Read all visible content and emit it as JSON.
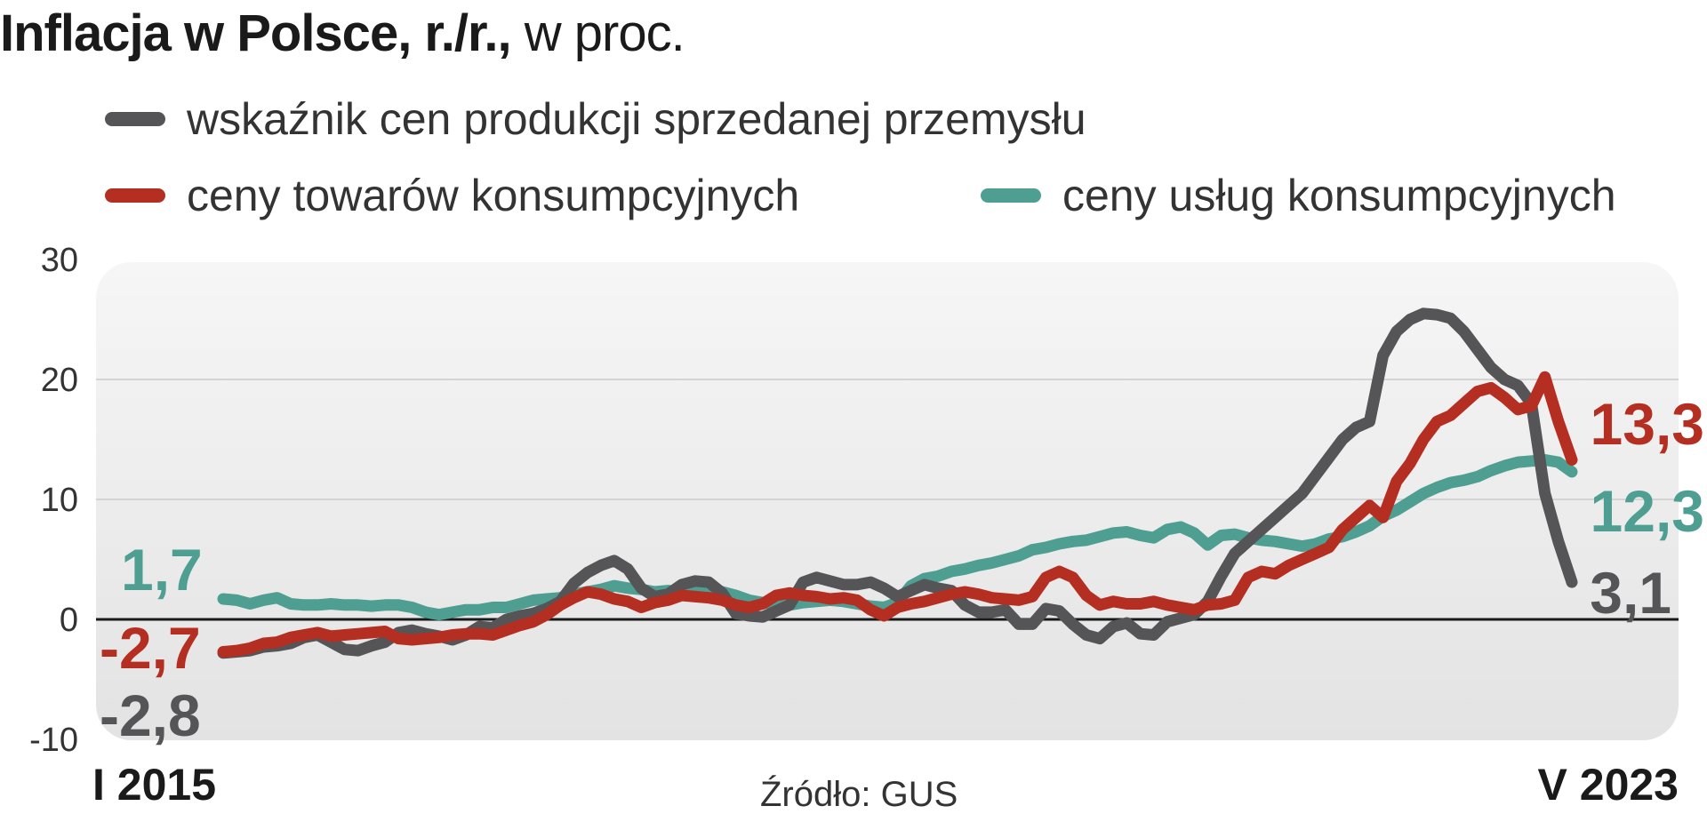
{
  "title": {
    "bold": "Inflacja w Polsce, r./r.,",
    "light": "w proc."
  },
  "source": "Źródło: GUS",
  "chart_data": {
    "type": "line",
    "ylim": [
      -10,
      30
    ],
    "yticks": [
      "30",
      "20",
      "10",
      "0",
      "-10"
    ],
    "x_start_label": "I 2015",
    "x_end_label": "V 2023",
    "series": [
      {
        "name": "wskaźnik cen produkcji sprzedanej przemysłu",
        "color": "#555558",
        "start_label": "-2,8",
        "end_label": "3,1",
        "values": [
          -2.8,
          -2.7,
          -2.6,
          -2.3,
          -2.2,
          -2.0,
          -1.5,
          -1.3,
          -1.9,
          -2.5,
          -2.6,
          -2.2,
          -1.9,
          -1.1,
          -0.9,
          -1.2,
          -1.4,
          -1.7,
          -1.3,
          -0.6,
          -0.7,
          0.0,
          0.3,
          0.5,
          0.9,
          1.5,
          3.0,
          3.9,
          4.5,
          4.9,
          4.2,
          2.6,
          1.9,
          2.1,
          2.9,
          3.2,
          3.1,
          2.2,
          0.5,
          0.3,
          0.2,
          0.7,
          1.2,
          3.1,
          3.5,
          3.2,
          2.9,
          2.9,
          3.1,
          2.6,
          1.9,
          2.4,
          2.9,
          2.6,
          2.4,
          1.2,
          0.6,
          0.6,
          0.8,
          -0.4,
          -0.4,
          0.9,
          0.7,
          -0.4,
          -1.3,
          -1.6,
          -0.6,
          -0.3,
          -1.2,
          -1.3,
          -0.2,
          0.1,
          0.4,
          1.5,
          3.6,
          5.5,
          6.5,
          7.5,
          8.5,
          9.5,
          10.5,
          12.0,
          13.5,
          15.0,
          16.0,
          16.5,
          22.0,
          24.0,
          25.0,
          25.5,
          25.4,
          25.1,
          24.0,
          22.5,
          21.0,
          20.0,
          19.5,
          18.0,
          10.5,
          6.5,
          3.1
        ]
      },
      {
        "name": "ceny towarów konsumpcyjnych",
        "color": "#b52e22",
        "start_label": "-2,7",
        "end_label": "13,3",
        "values": [
          -2.7,
          -2.6,
          -2.4,
          -2.0,
          -1.9,
          -1.5,
          -1.3,
          -1.1,
          -1.4,
          -1.3,
          -1.2,
          -1.1,
          -1.0,
          -1.6,
          -1.7,
          -1.6,
          -1.5,
          -1.3,
          -1.2,
          -1.2,
          -1.3,
          -0.9,
          -0.5,
          -0.2,
          0.4,
          1.2,
          1.8,
          2.3,
          2.1,
          1.7,
          1.5,
          1.0,
          1.4,
          1.6,
          2.0,
          1.9,
          1.8,
          1.6,
          1.2,
          1.0,
          1.3,
          2.0,
          2.2,
          2.0,
          1.9,
          1.7,
          1.8,
          1.6,
          0.8,
          0.3,
          1.0,
          1.3,
          1.5,
          1.8,
          2.1,
          2.3,
          2.1,
          1.8,
          1.7,
          1.6,
          1.9,
          3.5,
          4.0,
          3.5,
          2.0,
          1.2,
          1.5,
          1.3,
          1.3,
          1.5,
          1.2,
          1.0,
          0.8,
          1.2,
          1.3,
          1.6,
          3.5,
          4.0,
          3.8,
          4.5,
          5.0,
          5.5,
          6.0,
          7.5,
          8.5,
          9.5,
          8.5,
          11.5,
          13.0,
          15.0,
          16.5,
          17.0,
          18.0,
          19.0,
          19.3,
          18.5,
          17.5,
          17.8,
          20.2,
          16.5,
          13.3
        ]
      },
      {
        "name": "ceny usług konsumpcyjnych",
        "color": "#4e9e92",
        "start_label": "1,7",
        "end_label": "12,3",
        "values": [
          1.7,
          1.6,
          1.3,
          1.6,
          1.8,
          1.3,
          1.2,
          1.2,
          1.3,
          1.2,
          1.2,
          1.1,
          1.2,
          1.2,
          1.0,
          0.6,
          0.4,
          0.6,
          0.8,
          0.8,
          1.0,
          1.0,
          1.3,
          1.6,
          1.7,
          1.8,
          2.1,
          2.3,
          2.5,
          2.8,
          2.6,
          2.5,
          2.3,
          2.4,
          2.3,
          2.4,
          2.6,
          2.3,
          2.0,
          1.6,
          1.4,
          1.3,
          1.2,
          1.4,
          1.5,
          1.6,
          1.5,
          1.3,
          1.1,
          1.0,
          1.4,
          2.8,
          3.4,
          3.6,
          4.0,
          4.2,
          4.5,
          4.7,
          5.0,
          5.3,
          5.8,
          6.0,
          6.3,
          6.5,
          6.6,
          6.9,
          7.2,
          7.3,
          7.0,
          6.8,
          7.5,
          7.7,
          7.2,
          6.2,
          7.0,
          7.1,
          6.8,
          6.6,
          6.5,
          6.3,
          6.1,
          6.3,
          6.7,
          6.9,
          7.3,
          7.8,
          8.6,
          9.1,
          9.8,
          10.5,
          11.0,
          11.4,
          11.6,
          11.9,
          12.4,
          12.8,
          13.1,
          13.2,
          13.3,
          13.1,
          12.3
        ]
      }
    ]
  }
}
